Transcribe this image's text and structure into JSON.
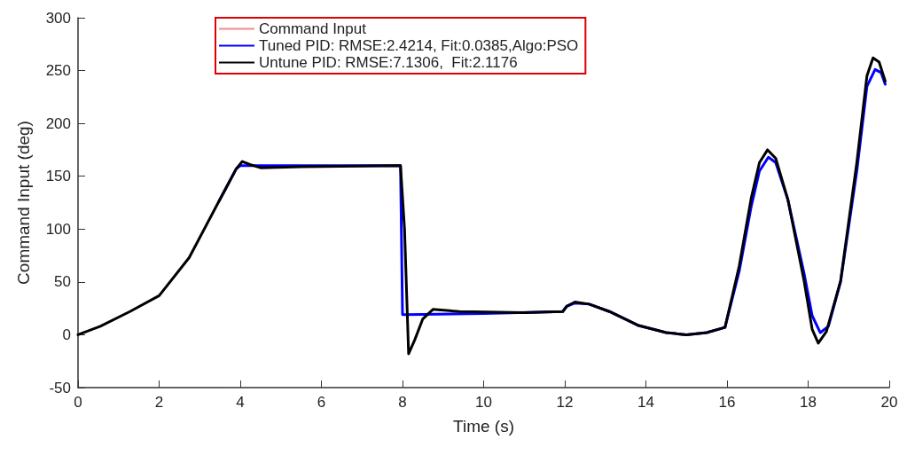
{
  "chart_data": {
    "type": "line",
    "xlabel": "Time (s)",
    "ylabel": "Command Input (deg)",
    "xlim": [
      0,
      20
    ],
    "xticks": [
      0,
      2,
      4,
      6,
      8,
      10,
      12,
      14,
      16,
      18,
      20
    ],
    "ylim": [
      -50,
      300
    ],
    "yticks": [
      -50,
      0,
      50,
      100,
      150,
      200,
      250,
      300
    ],
    "grid": false,
    "legend": "top",
    "marker": "none",
    "line_style": "solid",
    "series": [
      {
        "name": "Command Input",
        "color": "#f4878a"
      },
      {
        "name": "Tuned PID: RMSE:2.4214, Fit:0.0385,Algo:PSO",
        "color": "#0000ff",
        "x": [
          3.47,
          3.9,
          4,
          4.2,
          7.95,
          8,
          8.1,
          10,
          11.95,
          12.05,
          12.25,
          12.6,
          13.1,
          13.8,
          14.5,
          15,
          15.5,
          15.95,
          16.3,
          16.6,
          16.8,
          17.02,
          17.2,
          17.5,
          17.9,
          18.1,
          18.3,
          18.5,
          18.8,
          19.2,
          19.45,
          19.65,
          19.8,
          19.9
        ],
        "values": [
          126,
          157,
          160,
          160,
          160,
          19,
          19,
          20,
          22,
          27,
          30,
          29,
          22,
          9,
          2,
          0,
          2,
          7,
          60,
          122,
          155,
          168,
          163,
          128,
          58,
          18,
          2,
          8,
          50,
          155,
          235,
          251,
          248,
          237
        ]
      },
      {
        "name": "Untune PID: RMSE:7.1306,  Fit:2.1176",
        "color": "#000000",
        "x": [
          0,
          0.55,
          1.28,
          2,
          2.74,
          3.47,
          3.9,
          4.05,
          4.25,
          4.5,
          5.5,
          7.95,
          8.05,
          8.15,
          8.3,
          8.5,
          8.75,
          9.4,
          11,
          11.95,
          12.05,
          12.25,
          12.6,
          13.1,
          13.8,
          14.5,
          15,
          15.5,
          15.95,
          16.3,
          16.6,
          16.8,
          17,
          17.2,
          17.5,
          17.9,
          18.1,
          18.25,
          18.45,
          18.8,
          19.2,
          19.45,
          19.6,
          19.75,
          19.9
        ],
        "values": [
          0,
          8,
          22,
          37,
          73,
          126,
          157,
          164,
          161,
          158,
          159,
          160,
          100,
          -18,
          -5,
          15,
          24,
          22,
          21,
          22,
          27,
          31,
          29,
          22,
          9,
          2,
          0,
          2,
          7,
          65,
          130,
          163,
          175,
          167,
          128,
          51,
          5,
          -8,
          3,
          51,
          163,
          245,
          262,
          258,
          240
        ]
      }
    ]
  }
}
